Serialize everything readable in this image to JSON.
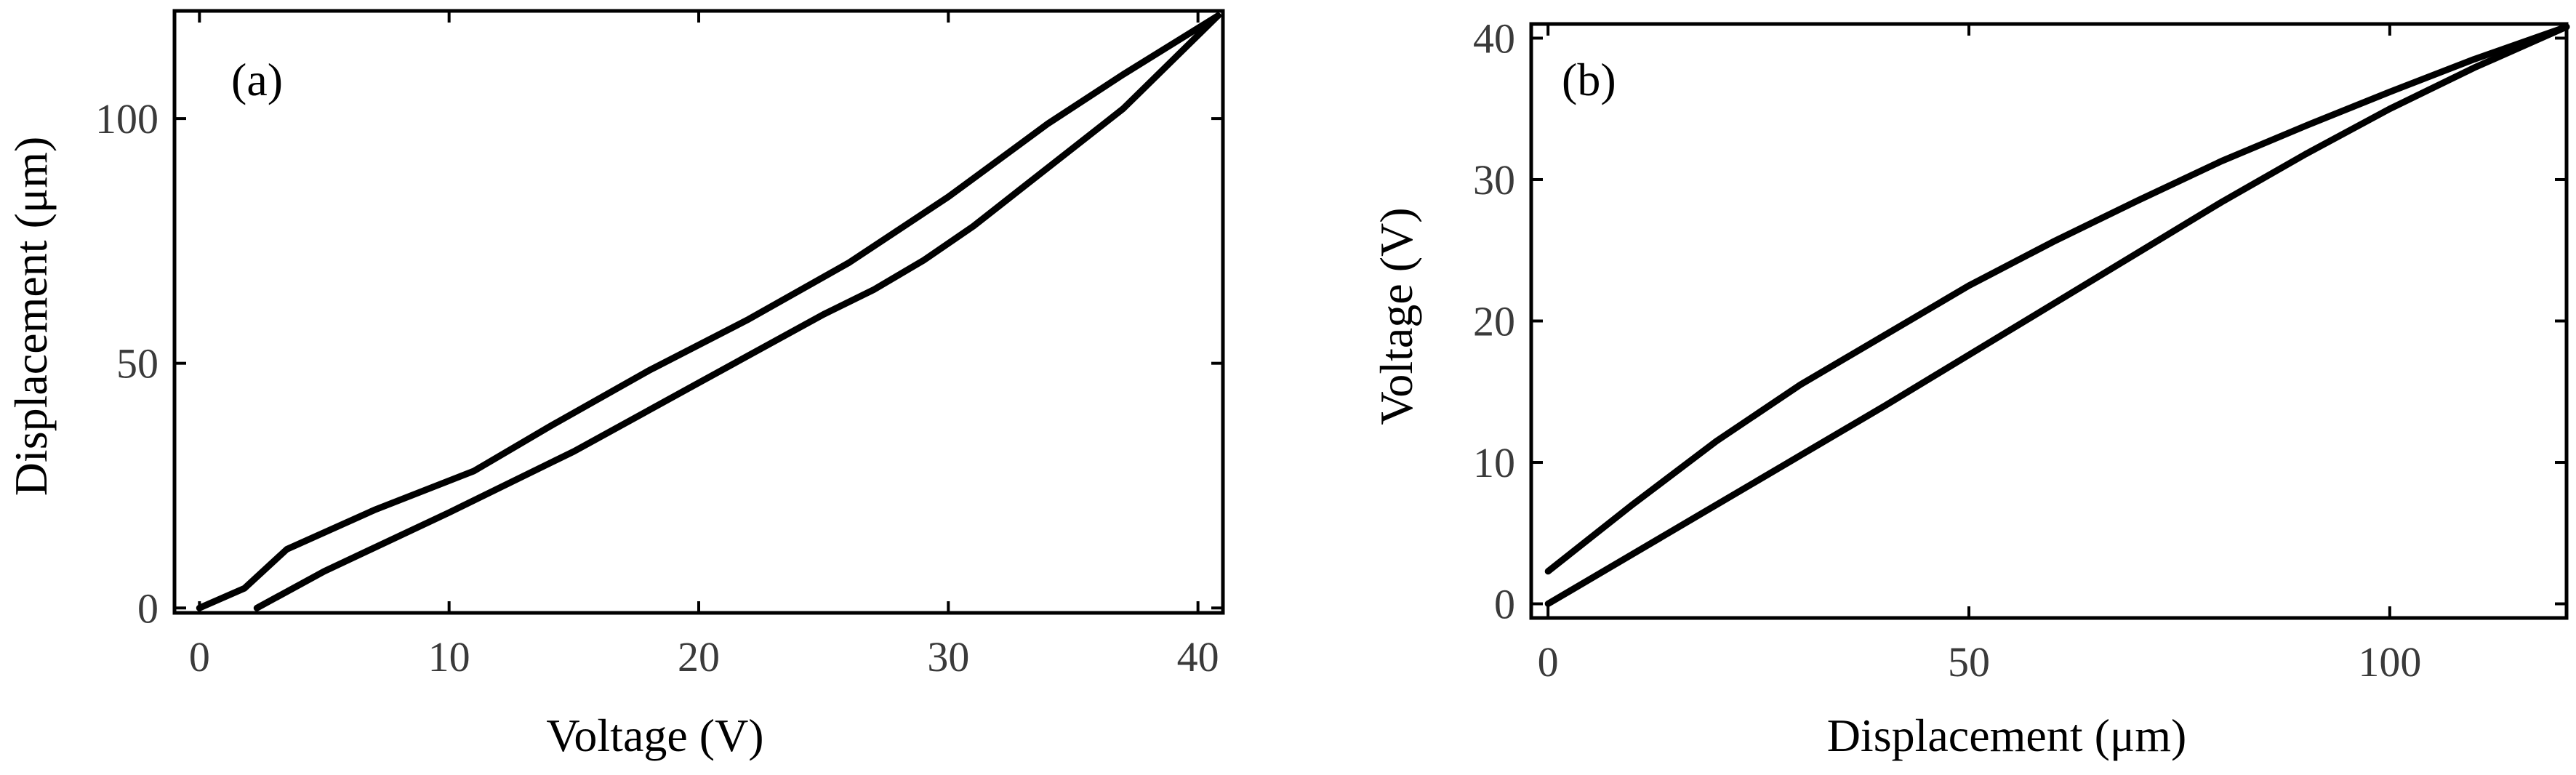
{
  "chart_data": [
    {
      "type": "line",
      "panel_label": "(a)",
      "xlabel": "Voltage (V)",
      "ylabel": "Displacement (μm)",
      "xlim": [
        -1,
        41
      ],
      "ylim": [
        -1,
        122
      ],
      "xticks": [
        0,
        10,
        20,
        30,
        40
      ],
      "yticks": [
        0,
        50,
        100
      ],
      "grid": false,
      "series": [
        {
          "points": [
            [
              0,
              0
            ],
            [
              1.8,
              4
            ],
            [
              3.5,
              12
            ],
            [
              7,
              20
            ],
            [
              11,
              28
            ],
            [
              14,
              37
            ],
            [
              18,
              48.5
            ],
            [
              22,
              59
            ],
            [
              26,
              70.5
            ],
            [
              30,
              84
            ],
            [
              34,
              99
            ],
            [
              37,
              109
            ],
            [
              40.8,
              121
            ]
          ]
        },
        {
          "points": [
            [
              40.8,
              121
            ],
            [
              39,
              112
            ],
            [
              37,
              102
            ],
            [
              35,
              94
            ],
            [
              33,
              86
            ],
            [
              31,
              78
            ],
            [
              29,
              71
            ],
            [
              27,
              65
            ],
            [
              25,
              60
            ],
            [
              20,
              46
            ],
            [
              15,
              32
            ],
            [
              10,
              19.5
            ],
            [
              5,
              7.5
            ],
            [
              2.3,
              0
            ]
          ]
        }
      ]
    },
    {
      "type": "line",
      "panel_label": "(b)",
      "xlabel": "Displacement (μm)",
      "ylabel": "Voltage (V)",
      "xlim": [
        -2,
        121
      ],
      "ylim": [
        -1,
        41
      ],
      "xticks": [
        0,
        50,
        100
      ],
      "yticks": [
        0,
        10,
        20,
        30,
        40
      ],
      "grid": false,
      "series": [
        {
          "points": [
            [
              0,
              2.3
            ],
            [
              10,
              7
            ],
            [
              20,
              11.5
            ],
            [
              30,
              15.5
            ],
            [
              40,
              19
            ],
            [
              50,
              22.5
            ],
            [
              60,
              25.6
            ],
            [
              70,
              28.5
            ],
            [
              80,
              31.3
            ],
            [
              90,
              33.8
            ],
            [
              100,
              36.2
            ],
            [
              110,
              38.5
            ],
            [
              121,
              40.8
            ]
          ]
        },
        {
          "points": [
            [
              0,
              0
            ],
            [
              10,
              3.5
            ],
            [
              20,
              7
            ],
            [
              30,
              10.5
            ],
            [
              40,
              14
            ],
            [
              50,
              17.6
            ],
            [
              60,
              21.2
            ],
            [
              70,
              24.8
            ],
            [
              80,
              28.4
            ],
            [
              90,
              31.8
            ],
            [
              100,
              35
            ],
            [
              110,
              37.9
            ],
            [
              121,
              40.8
            ]
          ]
        }
      ]
    }
  ]
}
